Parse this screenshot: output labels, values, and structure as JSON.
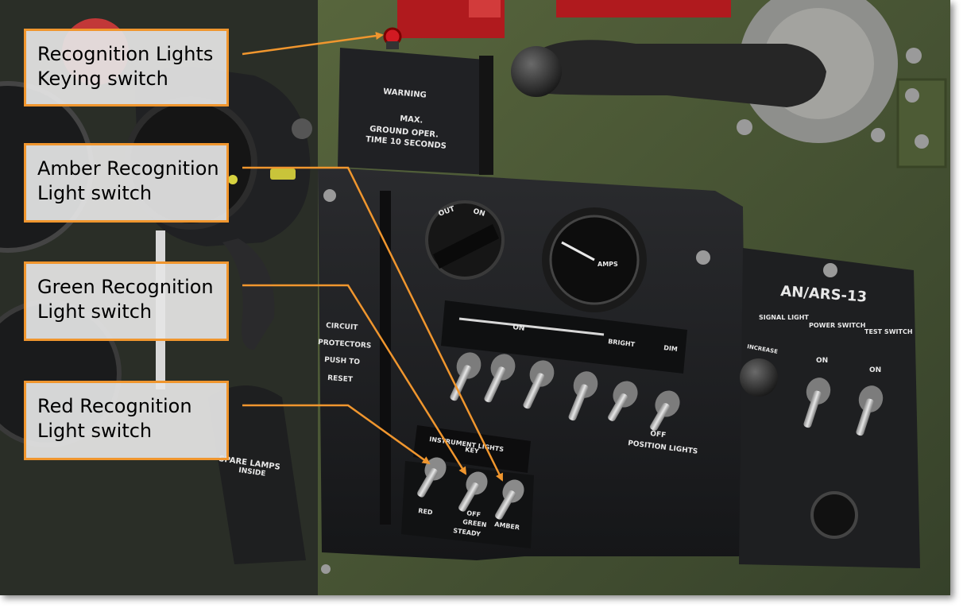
{
  "callouts": [
    {
      "lines": [
        "Recognition Lights",
        "Keying switch"
      ]
    },
    {
      "lines": [
        "Amber Recognition",
        "Light switch"
      ]
    },
    {
      "lines": [
        "Green Recognition",
        "Light switch"
      ]
    },
    {
      "lines": [
        "Red Recognition",
        "Light switch"
      ]
    }
  ],
  "panel_text": {
    "warning_title": "WARNING",
    "warning_line1": "MAX.",
    "warning_line2": "GROUND OPER.",
    "warning_line3": "TIME 10 SECONDS",
    "selector_left": "OUT",
    "selector_right": "ON",
    "gauge_unit": "AMPS",
    "ars_title": "AN/ARS-13",
    "ars_signal": "SIGNAL LIGHT",
    "ars_power": "POWER SWITCH",
    "ars_test": "TEST SWITCH",
    "ars_on_power": "ON",
    "ars_on_test": "ON",
    "ars_increase": "INCREASE",
    "strip_on": "ON",
    "strip_bright": "BRIGHT",
    "strip_dim": "DIM",
    "left_1": "CIRCUIT",
    "left_2": "PROTECTORS",
    "left_3": "PUSH TO",
    "left_4": "RESET",
    "lower_off": "OFF",
    "lower_position": "POSITION LIGHTS",
    "instrument": "INSTRUMENT LIGHTS",
    "instrument_key": "KEY",
    "rec_red": "RED",
    "rec_green": "GREEN",
    "rec_amber": "AMBER",
    "rec_off": "OFF",
    "rec_steady": "STEADY",
    "spare_1": "SPARE LAMPS",
    "spare_2": "INSIDE"
  },
  "colors": {
    "callout_border": "#f0962e",
    "arrow": "#f0962e",
    "panel_olive": "#4c5a34",
    "panel_black": "#1c1d1f"
  }
}
